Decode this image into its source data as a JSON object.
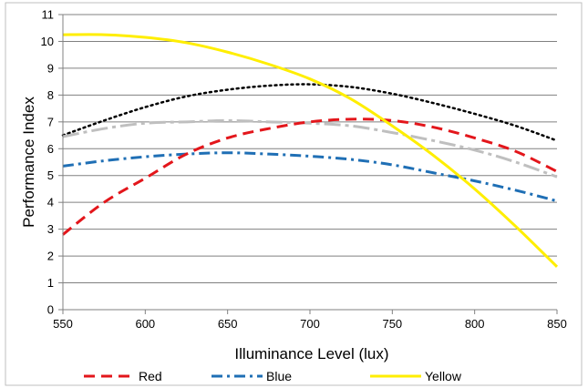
{
  "chart_data": {
    "type": "line",
    "xlabel": "Illuminance Level (lux)",
    "ylabel": "Performance Index",
    "xlim": [
      550,
      850
    ],
    "ylim": [
      0,
      11
    ],
    "x_ticks": [
      550,
      600,
      650,
      700,
      750,
      800,
      850
    ],
    "y_ticks": [
      0,
      1,
      2,
      3,
      4,
      5,
      6,
      7,
      8,
      9,
      10,
      11
    ],
    "grid": "horizontal",
    "legend_position": "bottom",
    "series": [
      {
        "name": "Red",
        "color": "#e3161b",
        "style": "dash",
        "x": [
          550,
          575,
          600,
          625,
          650,
          675,
          700,
          725,
          750,
          775,
          800,
          825,
          850
        ],
        "y": [
          2.8,
          4.0,
          4.9,
          5.8,
          6.4,
          6.75,
          7.0,
          7.1,
          7.05,
          6.8,
          6.4,
          5.9,
          5.15
        ]
      },
      {
        "name": "Blue",
        "color": "#1f6fb5",
        "style": "dashdot",
        "x": [
          550,
          575,
          600,
          625,
          650,
          675,
          700,
          725,
          750,
          775,
          800,
          825,
          850
        ],
        "y": [
          5.35,
          5.55,
          5.7,
          5.8,
          5.85,
          5.8,
          5.72,
          5.6,
          5.4,
          5.1,
          4.8,
          4.45,
          4.05
        ]
      },
      {
        "name": "Yellow",
        "color": "#ffee00",
        "style": "solid",
        "x": [
          550,
          575,
          600,
          625,
          650,
          675,
          700,
          725,
          750,
          775,
          800,
          825,
          850
        ],
        "y": [
          10.25,
          10.25,
          10.15,
          9.95,
          9.6,
          9.15,
          8.6,
          7.85,
          6.85,
          5.75,
          4.5,
          3.1,
          1.6
        ]
      },
      {
        "name": "",
        "color": "#000000",
        "style": "dot",
        "x": [
          550,
          575,
          600,
          625,
          650,
          675,
          700,
          725,
          750,
          775,
          800,
          825,
          850
        ],
        "y": [
          6.5,
          7.05,
          7.55,
          7.95,
          8.2,
          8.35,
          8.4,
          8.3,
          8.05,
          7.7,
          7.3,
          6.85,
          6.3
        ]
      },
      {
        "name": "",
        "color": "#bfbfbf",
        "style": "longdashdot",
        "x": [
          550,
          575,
          600,
          625,
          650,
          675,
          700,
          725,
          750,
          775,
          800,
          825,
          850
        ],
        "y": [
          6.45,
          6.75,
          6.95,
          7.0,
          7.05,
          7.0,
          6.95,
          6.85,
          6.6,
          6.3,
          5.95,
          5.5,
          4.95
        ]
      }
    ]
  }
}
